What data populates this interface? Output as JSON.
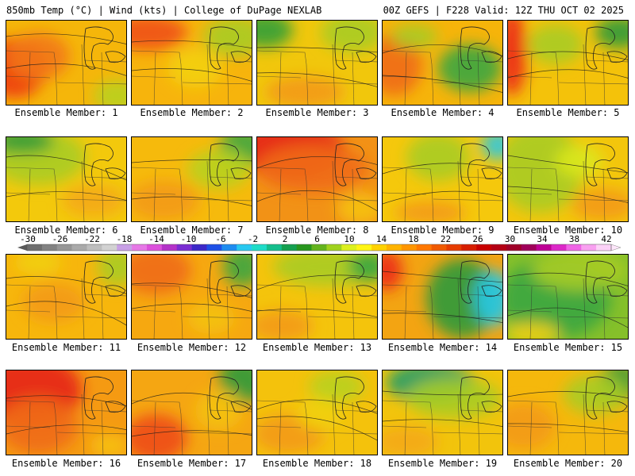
{
  "header": {
    "left": "850mb Temp (°C) | Wind (kts) | College of DuPage NEXLAB",
    "right": "00Z GEFS | F228 Valid: 12Z THU OCT 02 2025"
  },
  "colorbar": {
    "labels": [
      "-30",
      "-26",
      "-22",
      "-18",
      "-14",
      "-10",
      "-6",
      "-2",
      "2",
      "6",
      "10",
      "14",
      "18",
      "22",
      "26",
      "30",
      "34",
      "38",
      "42"
    ],
    "colors": [
      "#6e6e6e",
      "#828282",
      "#969696",
      "#aaaaaa",
      "#bebebe",
      "#d2d2d2",
      "#c8a0e6",
      "#e678e6",
      "#dc50dc",
      "#b432c8",
      "#7a2dd2",
      "#3c28c8",
      "#1e50e6",
      "#1e8cf0",
      "#28c8f0",
      "#1edcc8",
      "#14be8c",
      "#14a050",
      "#28961e",
      "#64b41e",
      "#a0d21e",
      "#dcf01e",
      "#fff514",
      "#ffd200",
      "#ffb400",
      "#ff9600",
      "#ff7800",
      "#f05a00",
      "#e63c00",
      "#d71e00",
      "#c80000",
      "#b40014",
      "#a00028",
      "#a0005a",
      "#be0096",
      "#dc28c8",
      "#f064e6",
      "#f8a0f0",
      "#fcd2f8"
    ]
  },
  "members": [
    {
      "label": "Ensemble Member: 1",
      "base": "#f5b60a",
      "blobs": [
        {
          "c": "#ee3a10"
        },
        {
          "c": "#f2781a"
        },
        {
          "c": "#b8d21e"
        }
      ]
    },
    {
      "label": "Ensemble Member: 2",
      "base": "#f7b40c",
      "blobs": [
        {
          "c": "#f0501a"
        },
        {
          "c": "#a8cc24"
        },
        {
          "c": "#f3d010"
        }
      ]
    },
    {
      "label": "Ensemble Member: 3",
      "base": "#f1c70c",
      "blobs": [
        {
          "c": "#32a038"
        },
        {
          "c": "#a8cc24"
        },
        {
          "c": "#f39a14"
        }
      ]
    },
    {
      "label": "Ensemble Member: 4",
      "base": "#f6b40a",
      "blobs": [
        {
          "c": "#f06b18"
        },
        {
          "c": "#3aa640"
        },
        {
          "c": "#a6cc26"
        }
      ]
    },
    {
      "label": "Ensemble Member: 5",
      "base": "#f4c20a",
      "blobs": [
        {
          "c": "#ec2814"
        },
        {
          "c": "#a8cc24"
        },
        {
          "c": "#2e9a3a"
        }
      ]
    },
    {
      "label": "Ensemble Member: 6",
      "base": "#f3c90c",
      "blobs": [
        {
          "c": "#a8cc24"
        },
        {
          "c": "#2e9a3a"
        },
        {
          "c": "#f4a814"
        }
      ]
    },
    {
      "label": "Ensemble Member: 7",
      "base": "#f6ba0c",
      "blobs": [
        {
          "c": "#f39a14"
        },
        {
          "c": "#3aa640"
        },
        {
          "c": "#b8d21e"
        }
      ]
    },
    {
      "label": "Ensemble Member: 8",
      "base": "#f29216",
      "blobs": [
        {
          "c": "#e5251a"
        },
        {
          "c": "#f06b18"
        },
        {
          "c": "#f6c20c"
        }
      ]
    },
    {
      "label": "Ensemble Member: 9",
      "base": "#f5c80c",
      "blobs": [
        {
          "c": "#28c8e6"
        },
        {
          "c": "#a8cc24"
        },
        {
          "c": "#f39a14"
        }
      ]
    },
    {
      "label": "Ensemble Member: 10",
      "base": "#f3c60c",
      "blobs": [
        {
          "c": "#a8cc24"
        },
        {
          "c": "#f39a14"
        },
        {
          "c": "#dce81e"
        }
      ]
    },
    {
      "label": "Ensemble Member: 11",
      "base": "#f7b60c",
      "blobs": [
        {
          "c": "#f39a14"
        },
        {
          "c": "#a8cc24"
        },
        {
          "c": "#f1d010"
        }
      ]
    },
    {
      "label": "Ensemble Member: 12",
      "base": "#f6a810",
      "blobs": [
        {
          "c": "#f06b18"
        },
        {
          "c": "#3aa640"
        },
        {
          "c": "#f4c20c"
        }
      ]
    },
    {
      "label": "Ensemble Member: 13",
      "base": "#f4c40c",
      "blobs": [
        {
          "c": "#a8cc24"
        },
        {
          "c": "#3aa640"
        },
        {
          "c": "#f39a14"
        }
      ]
    },
    {
      "label": "Ensemble Member: 14",
      "base": "#f3a412",
      "blobs": [
        {
          "c": "#2e9a3a"
        },
        {
          "c": "#28c8e6"
        },
        {
          "c": "#ec2814"
        }
      ]
    },
    {
      "label": "Ensemble Member: 15",
      "base": "#86c02a",
      "blobs": [
        {
          "c": "#3aa640"
        },
        {
          "c": "#a8cc24"
        },
        {
          "c": "#f1d010"
        }
      ]
    },
    {
      "label": "Ensemble Member: 16",
      "base": "#f59a12",
      "blobs": [
        {
          "c": "#e5251a"
        },
        {
          "c": "#f06b18"
        },
        {
          "c": "#f6c20c"
        }
      ]
    },
    {
      "label": "Ensemble Member: 17",
      "base": "#f5a612",
      "blobs": [
        {
          "c": "#ee4a16"
        },
        {
          "c": "#2e9a3a"
        },
        {
          "c": "#f4c20c"
        }
      ]
    },
    {
      "label": "Ensemble Member: 18",
      "base": "#f4c20c",
      "blobs": [
        {
          "c": "#f39a14"
        },
        {
          "c": "#b8d21e"
        },
        {
          "c": "#f1d010"
        }
      ]
    },
    {
      "label": "Ensemble Member: 19",
      "base": "#f2c40c",
      "blobs": [
        {
          "c": "#1e9c6a"
        },
        {
          "c": "#a8cc24"
        },
        {
          "c": "#f4a814"
        }
      ]
    },
    {
      "label": "Ensemble Member: 20",
      "base": "#f5b80c",
      "blobs": [
        {
          "c": "#f39a14"
        },
        {
          "c": "#2e9a3a"
        },
        {
          "c": "#a8cc24"
        }
      ]
    }
  ]
}
